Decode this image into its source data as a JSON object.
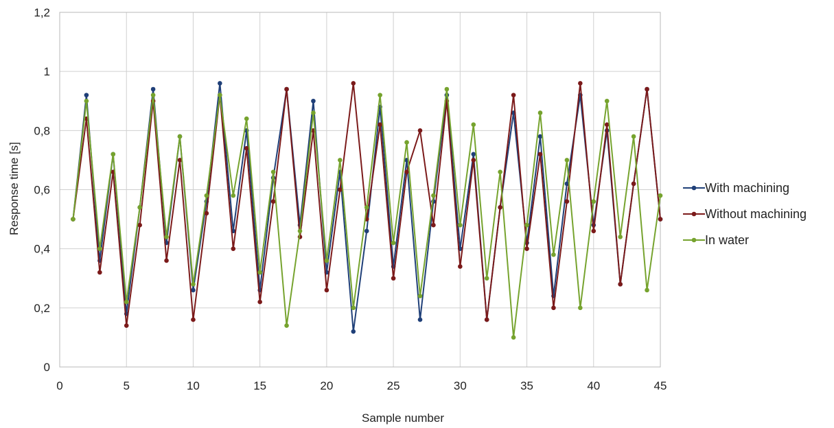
{
  "chart_data": {
    "type": "line",
    "title": "",
    "xlabel": "Sample number",
    "ylabel": "Response time [s]",
    "xlim": [
      0,
      45
    ],
    "ylim": [
      0,
      1.2
    ],
    "xticks": [
      0,
      5,
      10,
      15,
      20,
      25,
      30,
      35,
      40,
      45
    ],
    "yticks": [
      0,
      0.2,
      0.4,
      0.6,
      0.8,
      1,
      1.2
    ],
    "ytick_labels": [
      "0",
      "0,2",
      "0,4",
      "0,6",
      "0,8",
      "1",
      "1,2"
    ],
    "grid": true,
    "legend_position": "right",
    "x": [
      1,
      2,
      3,
      4,
      5,
      6,
      7,
      8,
      9,
      10,
      11,
      12,
      13,
      14,
      15,
      16,
      17,
      18,
      19,
      20,
      21,
      22,
      23,
      24,
      25,
      26,
      27,
      28,
      29,
      30,
      31,
      32,
      33,
      34,
      35,
      36,
      37,
      38,
      39,
      40,
      41,
      42,
      43,
      44,
      45
    ],
    "series": [
      {
        "name": "With machining",
        "color": "#1f3f78",
        "values": [
          0.5,
          0.92,
          0.36,
          0.72,
          0.18,
          0.54,
          0.94,
          0.42,
          0.78,
          0.26,
          0.56,
          0.96,
          0.46,
          0.8,
          0.26,
          0.64,
          0.94,
          0.48,
          0.9,
          0.32,
          0.66,
          0.12,
          0.46,
          0.88,
          0.34,
          0.7,
          0.16,
          0.56,
          0.92,
          0.4,
          0.72,
          0.16,
          0.54,
          0.86,
          0.42,
          0.78,
          0.24,
          0.62,
          0.92,
          0.48,
          0.8,
          0.28,
          0.62,
          0.94,
          0.5
        ]
      },
      {
        "name": "Without machining",
        "color": "#7b1a1a",
        "values": [
          0.5,
          0.84,
          0.32,
          0.66,
          0.14,
          0.48,
          0.9,
          0.36,
          0.7,
          0.16,
          0.52,
          0.92,
          0.4,
          0.74,
          0.22,
          0.56,
          0.94,
          0.44,
          0.8,
          0.26,
          0.6,
          0.96,
          0.5,
          0.82,
          0.3,
          0.66,
          0.8,
          0.48,
          0.9,
          0.34,
          0.7,
          0.16,
          0.54,
          0.92,
          0.4,
          0.72,
          0.2,
          0.56,
          0.96,
          0.46,
          0.82,
          0.28,
          0.62,
          0.94,
          0.5
        ]
      },
      {
        "name": "In water",
        "color": "#76a32e",
        "values": [
          0.5,
          0.9,
          0.4,
          0.72,
          0.22,
          0.54,
          0.92,
          0.44,
          0.78,
          0.28,
          0.58,
          0.92,
          0.58,
          0.84,
          0.32,
          0.66,
          0.14,
          0.46,
          0.86,
          0.36,
          0.7,
          0.2,
          0.54,
          0.92,
          0.42,
          0.76,
          0.24,
          0.58,
          0.94,
          0.48,
          0.82,
          0.3,
          0.66,
          0.1,
          0.48,
          0.86,
          0.38,
          0.7,
          0.2,
          0.56,
          0.9,
          0.44,
          0.78,
          0.26,
          0.58
        ]
      }
    ]
  }
}
